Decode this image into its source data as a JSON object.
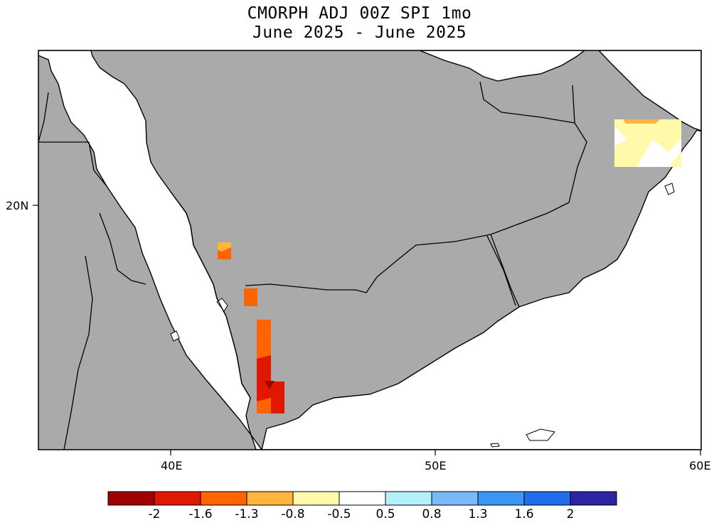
{
  "title": {
    "line1": "CMORPH ADJ 00Z SPI 1mo",
    "line2": "June 2025 - June 2025"
  },
  "axes": {
    "lat_labels": [
      "20N"
    ],
    "lon_labels": [
      "40E",
      "50E",
      "60E"
    ]
  },
  "colorbar": {
    "colors": [
      "#a00000",
      "#e01800",
      "#ff6400",
      "#ffb43c",
      "#fffaaa",
      "#ffffff",
      "#b4f0fa",
      "#78b9fa",
      "#3c96f5",
      "#1e6eeb",
      "#2d23a5"
    ],
    "labels": [
      "-2",
      "-1.6",
      "-1.3",
      "-0.8",
      "-0.5",
      "0.5",
      "0.8",
      "1.3",
      "1.6",
      "2"
    ]
  },
  "land_color": "#aaaaaa",
  "water_color": "#ffffff"
}
